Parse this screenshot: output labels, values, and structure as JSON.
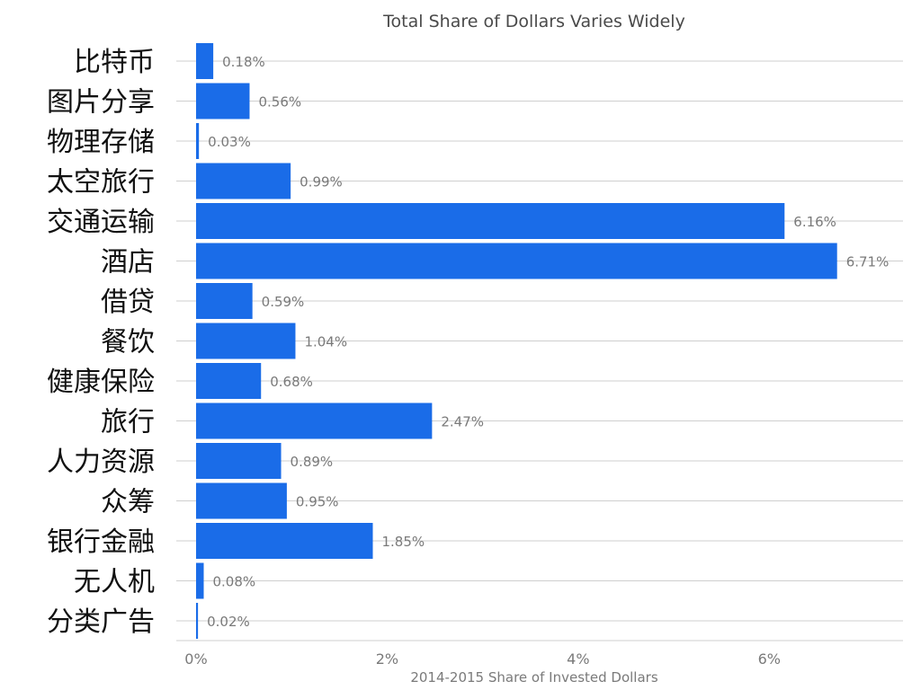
{
  "chart_data": {
    "type": "bar",
    "orientation": "horizontal",
    "title": "Total Share of Dollars Varies Widely",
    "xlabel": "2014-2015 Share of Invested Dollars",
    "ylabel": "",
    "categories": [
      "比特币",
      "图片分享",
      "物理存储",
      "太空旅行",
      "交通运输",
      "酒店",
      "借贷",
      "餐饮",
      "健康保险",
      "旅行",
      "人力资源",
      "众筹",
      "银行金融",
      "无人机",
      "分类广告"
    ],
    "values": [
      0.18,
      0.56,
      0.03,
      0.99,
      6.16,
      6.71,
      0.59,
      1.04,
      0.68,
      2.47,
      0.89,
      0.95,
      1.85,
      0.08,
      0.02
    ],
    "value_labels": [
      "0.18%",
      "0.56%",
      "0.03%",
      "0.99%",
      "6.16%",
      "6.71%",
      "0.59%",
      "1.04%",
      "0.68%",
      "2.47%",
      "0.89%",
      "0.95%",
      "1.85%",
      "0.08%",
      "0.02%"
    ],
    "xlim": [
      0,
      7.4
    ],
    "xticks": [
      0,
      2,
      4,
      6
    ],
    "xtick_labels": [
      "0%",
      "2%",
      "4%",
      "6%"
    ],
    "grid": true,
    "legend": "none",
    "bar_color": "#1a6ce8"
  }
}
